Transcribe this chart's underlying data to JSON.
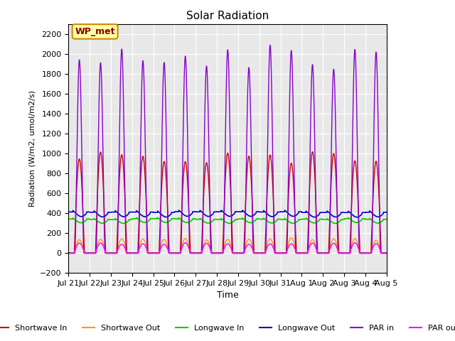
{
  "title": "Solar Radiation",
  "ylabel": "Radiation (W/m2, umol/m2/s)",
  "xlabel": "Time",
  "ylim": [
    -200,
    2300
  ],
  "yticks": [
    -200,
    0,
    200,
    400,
    600,
    800,
    1000,
    1200,
    1400,
    1600,
    1800,
    2000,
    2200
  ],
  "xtick_labels": [
    "Jul 21",
    "Jul 22",
    "Jul 23",
    "Jul 24",
    "Jul 25",
    "Jul 26",
    "Jul 27",
    "Jul 28",
    "Jul 29",
    "Jul 30",
    "Jul 31",
    "Aug 1",
    "Aug 2",
    "Aug 3",
    "Aug 4",
    "Aug 5"
  ],
  "num_days": 15,
  "background_color": "#e8e8e8",
  "grid_color": "white",
  "legend_entries": [
    {
      "label": "Shortwave In",
      "color": "#cc0000"
    },
    {
      "label": "Shortwave Out",
      "color": "#ff9900"
    },
    {
      "label": "Longwave In",
      "color": "#00cc00"
    },
    {
      "label": "Longwave Out",
      "color": "#0000cc"
    },
    {
      "label": "PAR in",
      "color": "#8800cc"
    },
    {
      "label": "PAR out",
      "color": "#ff00ff"
    }
  ],
  "annotation_text": "WP_met",
  "annotation_bg": "#ffffaa",
  "annotation_border": "#cc8800",
  "shortwave_in_peak": 1000,
  "shortwave_out_peak": 150,
  "longwave_in_base": 340,
  "longwave_in_day_min": 305,
  "longwave_out_base": 410,
  "longwave_out_day_min": 370,
  "PAR_in_peak": 2050,
  "PAR_out_peak": 100
}
